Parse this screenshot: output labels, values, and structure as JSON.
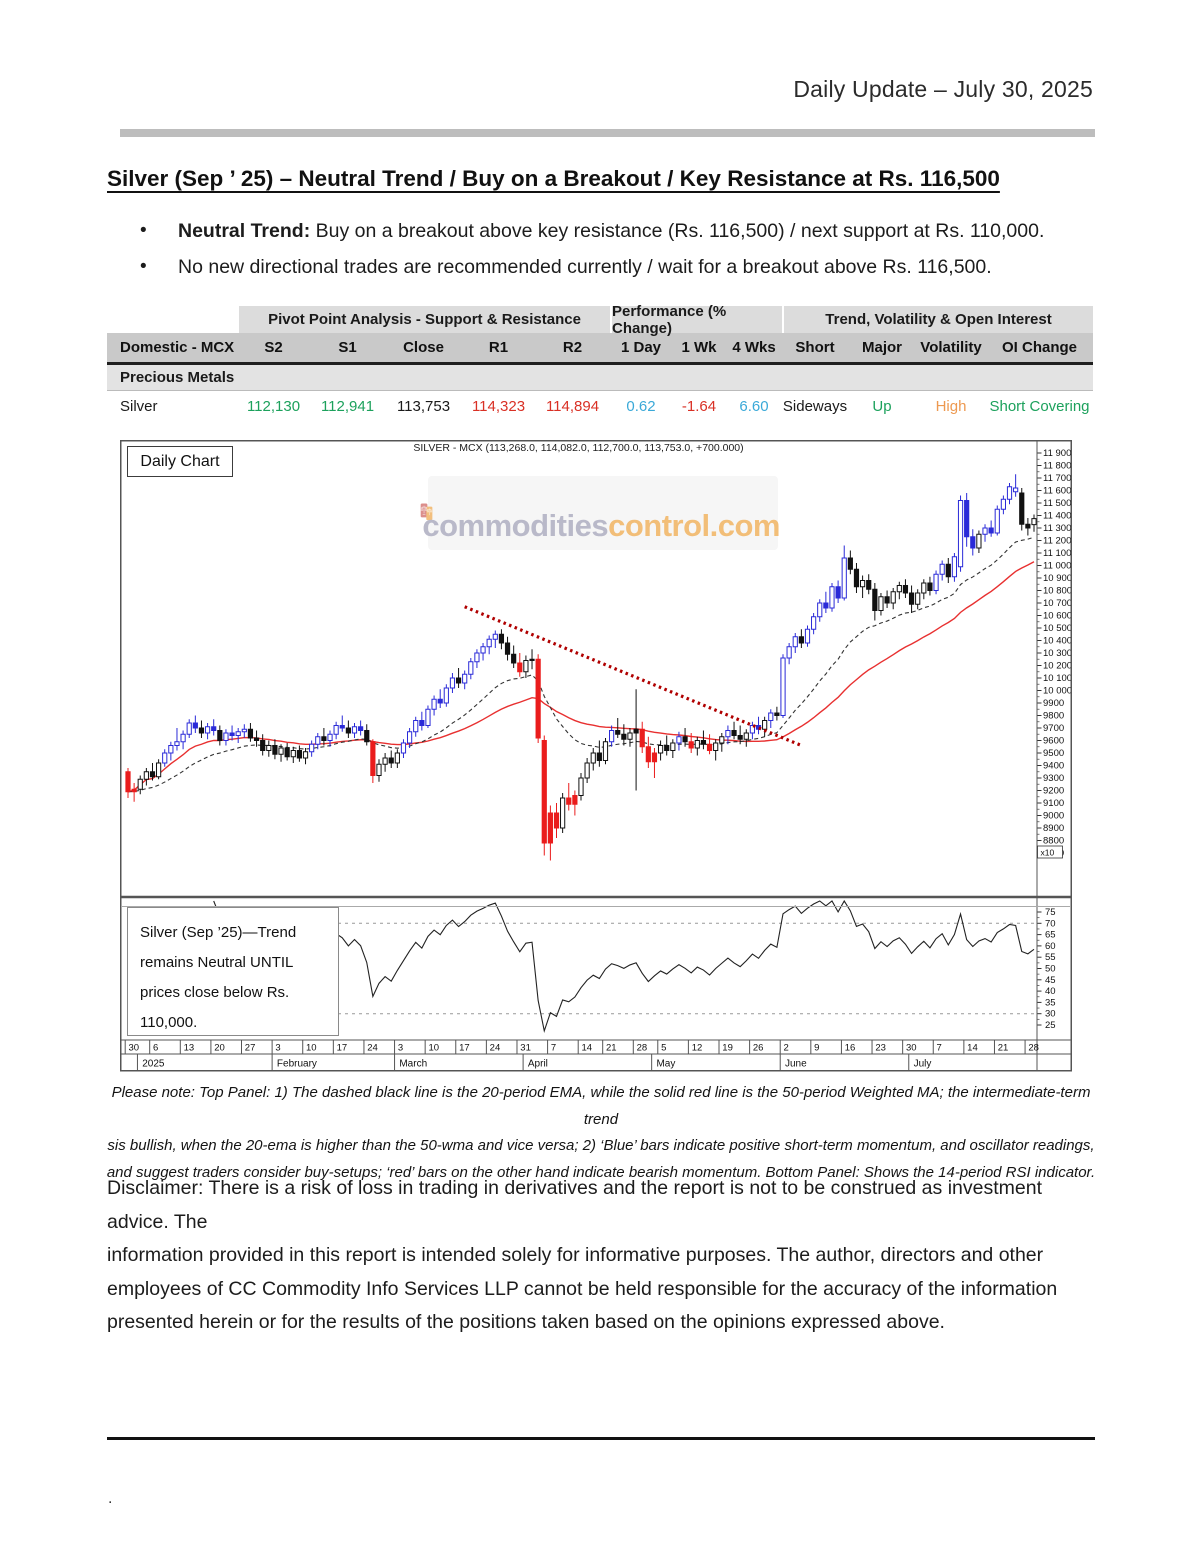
{
  "header": {
    "date_label": "Daily Update – July 30, 2025"
  },
  "title": {
    "text": "Silver (Sep ’ 25) – Neutral Trend / Buy on a Breakout / Key Resistance at Rs. 116,500"
  },
  "bullets": [
    {
      "bold": "Neutral Trend:",
      "rest": " Buy on a breakout above key resistance (Rs. 116,500) / next support at Rs. 110,000."
    },
    {
      "bold": "",
      "rest": "No new directional trades are recommended currently / wait for a breakout above Rs. 116,500."
    }
  ],
  "table": {
    "group_headers": [
      {
        "label": "Pivot Point Analysis - Support & Resistance"
      },
      {
        "label": "Performance (% Change)"
      },
      {
        "label": "Trend, Volatility & Open Interest"
      }
    ],
    "columns": [
      "Domestic - MCX",
      "S2",
      "S1",
      "Close",
      "R1",
      "R2",
      "1 Day",
      "1 Wk",
      "4 Wks",
      "Short",
      "Major",
      "Volatility",
      "OI Change"
    ],
    "section": "Precious Metals",
    "rows": [
      {
        "name": "Silver",
        "s2": "112,130",
        "s1": "112,941",
        "close": "113,753",
        "r1": "114,323",
        "r2": "114,894",
        "d1": "0.62",
        "w1": "-1.64",
        "w4": "6.60",
        "short": "Sideways",
        "major": "Up",
        "vol": "High",
        "oi": "Short Covering"
      }
    ]
  },
  "chart_data": {
    "type": "candlestick_with_rsi",
    "title": "SILVER - MCX (113,268.0, 114,082.0, 112,700.0, 113,753.0, +700.000)",
    "panel_label": "Daily Chart",
    "watermark": {
      "gray_part": "commodities",
      "orange_part": "control.com"
    },
    "annotation": {
      "lines": [
        "Silver (Sep ’25)—Trend",
        "remains Neutral UNTIL",
        "prices close below Rs.",
        "110,000."
      ]
    },
    "price_axis": {
      "min": 8700,
      "max": 11900,
      "step": 100,
      "multiplier": "x10"
    },
    "rsi_axis": {
      "min": 25,
      "max": 75,
      "step": 5,
      "upper_band": 70,
      "lower_band": 30
    },
    "overlays": {
      "ema_period": 20,
      "wma_period": 50,
      "rsi_period": 14
    },
    "colors": {
      "up_blue": "#2a2ad8",
      "down_red": "#ea1c1c",
      "black": "#111111",
      "ma_fast": "#333333",
      "ma_slow": "#e83030",
      "trendline": "#b00000"
    },
    "trendline": {
      "from_day": 55,
      "from_price": 10670,
      "to_day": 110,
      "to_price": 9560
    },
    "x_ticks": [
      [
        "30",
        0
      ],
      [
        "6",
        4
      ],
      [
        "13",
        9
      ],
      [
        "20",
        14
      ],
      [
        "27",
        19
      ],
      [
        "3",
        24
      ],
      [
        "10",
        29
      ],
      [
        "17",
        34
      ],
      [
        "24",
        39
      ],
      [
        "3",
        44
      ],
      [
        "10",
        49
      ],
      [
        "17",
        54
      ],
      [
        "24",
        59
      ],
      [
        "31",
        64
      ],
      [
        "7",
        69
      ],
      [
        "14",
        74
      ],
      [
        "21",
        78
      ],
      [
        "28",
        83
      ],
      [
        "5",
        87
      ],
      [
        "12",
        92
      ],
      [
        "19",
        97
      ],
      [
        "26",
        102
      ],
      [
        "2",
        107
      ],
      [
        "9",
        112
      ],
      [
        "16",
        117
      ],
      [
        "23",
        122
      ],
      [
        "30",
        127
      ],
      [
        "7",
        132
      ],
      [
        "14",
        137
      ],
      [
        "21",
        142
      ],
      [
        "28",
        147
      ]
    ],
    "months": [
      [
        "2025",
        2
      ],
      [
        "February",
        24
      ],
      [
        "March",
        44
      ],
      [
        "April",
        65
      ],
      [
        "May",
        86
      ],
      [
        "June",
        107
      ],
      [
        "July",
        128
      ]
    ],
    "candles": [
      [
        9350,
        9380,
        9140,
        9190,
        "r"
      ],
      [
        9190,
        9260,
        9110,
        9210,
        "r"
      ],
      [
        9210,
        9320,
        9170,
        9290,
        "w"
      ],
      [
        9290,
        9380,
        9240,
        9350,
        "w"
      ],
      [
        9350,
        9420,
        9280,
        9310,
        "k"
      ],
      [
        9310,
        9450,
        9290,
        9420,
        "w"
      ],
      [
        9420,
        9530,
        9390,
        9500,
        "b"
      ],
      [
        9500,
        9590,
        9440,
        9560,
        "b"
      ],
      [
        9560,
        9700,
        9520,
        9590,
        "b"
      ],
      [
        9590,
        9680,
        9530,
        9650,
        "b"
      ],
      [
        9650,
        9770,
        9620,
        9740,
        "b"
      ],
      [
        9740,
        9800,
        9660,
        9700,
        "b"
      ],
      [
        9700,
        9760,
        9620,
        9660,
        "k"
      ],
      [
        9660,
        9740,
        9610,
        9710,
        "b"
      ],
      [
        9710,
        9770,
        9640,
        9680,
        "b"
      ],
      [
        9680,
        9720,
        9560,
        9600,
        "k"
      ],
      [
        9600,
        9690,
        9560,
        9660,
        "b"
      ],
      [
        9660,
        9720,
        9600,
        9640,
        "b"
      ],
      [
        9640,
        9700,
        9580,
        9670,
        "b"
      ],
      [
        9670,
        9730,
        9620,
        9690,
        "b"
      ],
      [
        9690,
        9740,
        9590,
        9620,
        "k"
      ],
      [
        9620,
        9680,
        9550,
        9600,
        "k"
      ],
      [
        9600,
        9650,
        9480,
        9520,
        "k"
      ],
      [
        9520,
        9600,
        9470,
        9560,
        "w"
      ],
      [
        9560,
        9610,
        9450,
        9490,
        "k"
      ],
      [
        9490,
        9570,
        9430,
        9540,
        "w"
      ],
      [
        9540,
        9580,
        9440,
        9470,
        "k"
      ],
      [
        9470,
        9550,
        9420,
        9520,
        "w"
      ],
      [
        9520,
        9560,
        9430,
        9460,
        "k"
      ],
      [
        9460,
        9540,
        9410,
        9510,
        "w"
      ],
      [
        9510,
        9600,
        9470,
        9570,
        "b"
      ],
      [
        9570,
        9660,
        9530,
        9630,
        "b"
      ],
      [
        9630,
        9700,
        9560,
        9600,
        "k"
      ],
      [
        9600,
        9680,
        9550,
        9650,
        "b"
      ],
      [
        9650,
        9750,
        9610,
        9720,
        "b"
      ],
      [
        9720,
        9800,
        9670,
        9700,
        "b"
      ],
      [
        9700,
        9760,
        9620,
        9660,
        "k"
      ],
      [
        9660,
        9740,
        9620,
        9710,
        "b"
      ],
      [
        9710,
        9760,
        9640,
        9680,
        "b"
      ],
      [
        9680,
        9730,
        9560,
        9590,
        "k"
      ],
      [
        9590,
        9610,
        9260,
        9320,
        "r"
      ],
      [
        9320,
        9450,
        9270,
        9410,
        "w"
      ],
      [
        9410,
        9500,
        9350,
        9460,
        "w"
      ],
      [
        9460,
        9520,
        9380,
        9420,
        "k"
      ],
      [
        9420,
        9530,
        9380,
        9500,
        "w"
      ],
      [
        9500,
        9610,
        9460,
        9580,
        "b"
      ],
      [
        9580,
        9700,
        9540,
        9670,
        "b"
      ],
      [
        9670,
        9790,
        9630,
        9760,
        "b"
      ],
      [
        9760,
        9830,
        9680,
        9720,
        "b"
      ],
      [
        9720,
        9880,
        9700,
        9850,
        "b"
      ],
      [
        9850,
        9960,
        9800,
        9930,
        "b"
      ],
      [
        9930,
        10010,
        9860,
        9900,
        "b"
      ],
      [
        9900,
        10050,
        9870,
        10020,
        "b"
      ],
      [
        10020,
        10140,
        9980,
        10100,
        "b"
      ],
      [
        10100,
        10180,
        10020,
        10060,
        "k"
      ],
      [
        10060,
        10160,
        10010,
        10130,
        "b"
      ],
      [
        10130,
        10260,
        10090,
        10230,
        "b"
      ],
      [
        10230,
        10330,
        10180,
        10300,
        "b"
      ],
      [
        10300,
        10380,
        10240,
        10350,
        "b"
      ],
      [
        10350,
        10440,
        10290,
        10410,
        "b"
      ],
      [
        10410,
        10480,
        10340,
        10450,
        "b"
      ],
      [
        10450,
        10490,
        10330,
        10380,
        "k"
      ],
      [
        10380,
        10430,
        10240,
        10290,
        "k"
      ],
      [
        10290,
        10360,
        10180,
        10220,
        "k"
      ],
      [
        10220,
        10300,
        10110,
        10150,
        "r"
      ],
      [
        10150,
        10280,
        10100,
        10240,
        "w"
      ],
      [
        10240,
        10330,
        10170,
        10250,
        "k"
      ],
      [
        10250,
        10290,
        9580,
        9620,
        "r"
      ],
      [
        9600,
        9640,
        8680,
        8780,
        "r"
      ],
      [
        8780,
        9080,
        8640,
        9020,
        "r"
      ],
      [
        9020,
        9100,
        8820,
        8900,
        "r"
      ],
      [
        8900,
        9180,
        8860,
        9140,
        "w"
      ],
      [
        9140,
        9260,
        9040,
        9090,
        "r"
      ],
      [
        9090,
        9200,
        9000,
        9160,
        "r"
      ],
      [
        9160,
        9340,
        9120,
        9300,
        "w"
      ],
      [
        9300,
        9460,
        9260,
        9420,
        "w"
      ],
      [
        9420,
        9540,
        9360,
        9500,
        "w"
      ],
      [
        9500,
        9600,
        9390,
        9440,
        "k"
      ],
      [
        9440,
        9620,
        9410,
        9590,
        "w"
      ],
      [
        9590,
        9720,
        9550,
        9680,
        "b"
      ],
      [
        9680,
        9780,
        9620,
        9650,
        "k"
      ],
      [
        9650,
        9730,
        9560,
        9610,
        "k"
      ],
      [
        9610,
        9700,
        9550,
        9660,
        "w"
      ],
      [
        9660,
        10010,
        9200,
        9690,
        "k"
      ],
      [
        9690,
        9750,
        9500,
        9550,
        "r"
      ],
      [
        9550,
        9630,
        9380,
        9430,
        "r"
      ],
      [
        9430,
        9540,
        9300,
        9500,
        "r"
      ],
      [
        9500,
        9600,
        9440,
        9560,
        "w"
      ],
      [
        9560,
        9640,
        9480,
        9520,
        "k"
      ],
      [
        9520,
        9610,
        9460,
        9580,
        "w"
      ],
      [
        9580,
        9670,
        9520,
        9630,
        "b"
      ],
      [
        9630,
        9700,
        9550,
        9590,
        "k"
      ],
      [
        9590,
        9660,
        9500,
        9540,
        "r"
      ],
      [
        9540,
        9630,
        9480,
        9600,
        "w"
      ],
      [
        9600,
        9680,
        9530,
        9570,
        "k"
      ],
      [
        9570,
        9650,
        9490,
        9520,
        "r"
      ],
      [
        9520,
        9610,
        9440,
        9580,
        "w"
      ],
      [
        9580,
        9660,
        9510,
        9630,
        "w"
      ],
      [
        9630,
        9720,
        9570,
        9680,
        "b"
      ],
      [
        9680,
        9750,
        9610,
        9640,
        "k"
      ],
      [
        9640,
        9720,
        9570,
        9610,
        "k"
      ],
      [
        9610,
        9690,
        9550,
        9660,
        "w"
      ],
      [
        9660,
        9750,
        9610,
        9720,
        "b"
      ],
      [
        9720,
        9790,
        9650,
        9690,
        "b"
      ],
      [
        9690,
        9790,
        9630,
        9760,
        "w"
      ],
      [
        9760,
        9850,
        9700,
        9820,
        "b"
      ],
      [
        9820,
        9870,
        9760,
        9800,
        "k"
      ],
      [
        9800,
        10290,
        9780,
        10260,
        "b"
      ],
      [
        10260,
        10380,
        10210,
        10350,
        "b"
      ],
      [
        10350,
        10460,
        10300,
        10430,
        "b"
      ],
      [
        10430,
        10490,
        10340,
        10380,
        "k"
      ],
      [
        10380,
        10520,
        10350,
        10490,
        "b"
      ],
      [
        10490,
        10620,
        10450,
        10590,
        "b"
      ],
      [
        10590,
        10730,
        10550,
        10700,
        "b"
      ],
      [
        10700,
        10790,
        10620,
        10660,
        "b"
      ],
      [
        10660,
        10860,
        10630,
        10830,
        "b"
      ],
      [
        10830,
        10880,
        10700,
        10740,
        "b"
      ],
      [
        10740,
        11160,
        10720,
        11060,
        "b"
      ],
      [
        11060,
        11120,
        10930,
        10970,
        "k"
      ],
      [
        10970,
        11020,
        10780,
        10830,
        "k"
      ],
      [
        10830,
        10920,
        10740,
        10880,
        "w"
      ],
      [
        10880,
        10930,
        10770,
        10810,
        "k"
      ],
      [
        10810,
        10860,
        10560,
        10640,
        "k"
      ],
      [
        10640,
        10780,
        10600,
        10750,
        "w"
      ],
      [
        10750,
        10800,
        10660,
        10700,
        "k"
      ],
      [
        10700,
        10820,
        10650,
        10790,
        "w"
      ],
      [
        10790,
        10870,
        10730,
        10840,
        "w"
      ],
      [
        10840,
        10890,
        10740,
        10780,
        "k"
      ],
      [
        10780,
        10840,
        10620,
        10690,
        "k"
      ],
      [
        10690,
        10810,
        10650,
        10780,
        "w"
      ],
      [
        10780,
        10890,
        10730,
        10860,
        "w"
      ],
      [
        10860,
        10910,
        10760,
        10800,
        "k"
      ],
      [
        10800,
        10960,
        10770,
        10930,
        "b"
      ],
      [
        10930,
        11040,
        10880,
        11010,
        "b"
      ],
      [
        11010,
        11060,
        10860,
        10910,
        "k"
      ],
      [
        10910,
        11100,
        10870,
        11070,
        "b"
      ],
      [
        10990,
        11560,
        10950,
        11520,
        "b"
      ],
      [
        11520,
        11580,
        11150,
        11230,
        "b"
      ],
      [
        11230,
        11290,
        11080,
        11140,
        "b"
      ],
      [
        11140,
        11280,
        11100,
        11250,
        "w"
      ],
      [
        11250,
        11330,
        11190,
        11300,
        "b"
      ],
      [
        11300,
        11360,
        11230,
        11260,
        "b"
      ],
      [
        11260,
        11480,
        11240,
        11450,
        "b"
      ],
      [
        11450,
        11560,
        11410,
        11530,
        "b"
      ],
      [
        11530,
        11660,
        11490,
        11630,
        "b"
      ],
      [
        11590,
        11730,
        11550,
        11620,
        "b"
      ],
      [
        11580,
        11620,
        11280,
        11330,
        "k"
      ],
      [
        11330,
        11380,
        11240,
        11300,
        "k"
      ],
      [
        11327,
        11408,
        11270,
        11375,
        "w"
      ]
    ]
  },
  "notes": {
    "lines": [
      "Please note: Top Panel: 1) The dashed black line is the 20-period EMA, while the solid red line is the 50-period Weighted MA; the intermediate-term trend",
      "sis bullish, when the 20-ema is higher than the 50-wma and vice versa; 2) ‘Blue’ bars indicate positive short-term momentum, and oscillator readings,",
      "and suggest traders consider buy-setups; ‘red’ bars on the other hand indicate bearish momentum. Bottom Panel: Shows the 14-period RSI indicator."
    ]
  },
  "disclaimer": {
    "lines": [
      "Disclaimer: There is a risk of loss in trading in derivatives and the report is not to be construed as investment advice. The",
      "information provided in this report is intended solely for informative purposes. The author, directors and other",
      "employees of CC Commodity Info Services LLP cannot be held responsible for the accuracy of the information",
      "presented herein or for the results of the positions taken based on the opinions expressed above."
    ]
  },
  "footer": {
    "dot": "."
  }
}
